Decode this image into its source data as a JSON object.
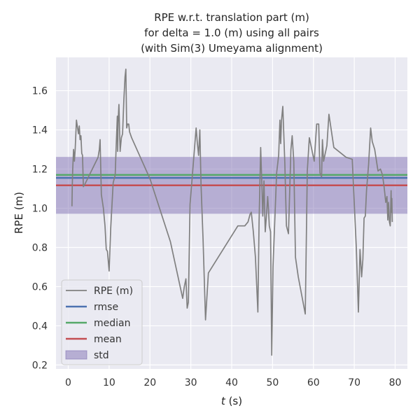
{
  "chart_data": {
    "type": "line",
    "title_lines": [
      "RPE w.r.t. translation part (m)",
      "for delta = 1.0 (m) using all pairs",
      "(with Sim(3) Umeyama alignment)"
    ],
    "xlabel_italic": "t",
    "xlabel_suffix": " (s)",
    "ylabel": "RPE (m)",
    "xlim": [
      -3,
      83
    ],
    "ylim": [
      0.18,
      1.77
    ],
    "xticks": [
      0,
      10,
      20,
      30,
      40,
      50,
      60,
      70,
      80
    ],
    "yticks": [
      0.2,
      0.4,
      0.6,
      0.8,
      1.0,
      1.2,
      1.4,
      1.6
    ],
    "ytick_labels": [
      "0.2",
      "0.4",
      "0.6",
      "0.8",
      "1.0",
      "1.2",
      "1.4",
      "1.6"
    ],
    "grid": true,
    "legend_position": "lower-left",
    "series": [
      {
        "name": "RPE (m)",
        "color": "#808080",
        "x": [
          0.9,
          1.0,
          1.1,
          1.3,
          1.5,
          1.7,
          2.0,
          2.2,
          2.5,
          2.7,
          2.9,
          3.1,
          3.3,
          3.5,
          3.7,
          4.0,
          7.3,
          7.6,
          7.8,
          8.1,
          8.6,
          9.0,
          9.3,
          9.6,
          10.0,
          10.4,
          11.0,
          11.5,
          11.7,
          12.0,
          12.1,
          12.2,
          12.4,
          12.7,
          13.0,
          13.3,
          13.6,
          13.9,
          14.1,
          14.3,
          14.5,
          14.8,
          15.0,
          15.5,
          20.0,
          25.0,
          28.0,
          28.4,
          28.8,
          29.1,
          29.4,
          29.8,
          31.3,
          31.6,
          31.9,
          32.2,
          32.5,
          33.0,
          33.6,
          34.3,
          41.5,
          41.8,
          43.2,
          44.0,
          44.5,
          44.8,
          45.3,
          45.8,
          46.4,
          46.7,
          47.1,
          47.4,
          47.6,
          47.9,
          48.2,
          48.5,
          48.8,
          49.0,
          49.2,
          49.5,
          49.8,
          50.1,
          51.0,
          51.5,
          51.8,
          52.0,
          52.2,
          52.5,
          53.0,
          53.4,
          53.9,
          54.5,
          54.8,
          55.2,
          55.6,
          56.3,
          58.0,
          58.5,
          59.0,
          59.6,
          60.2,
          60.8,
          61.3,
          61.6,
          62.0,
          62.2,
          62.5,
          63.3,
          63.8,
          65.0,
          68.0,
          69.5,
          70.5,
          71.0,
          71.4,
          71.8,
          72.1,
          72.4,
          72.7,
          73.0,
          73.5,
          74.0,
          74.4,
          75.0,
          75.8,
          76.4,
          76.9,
          77.3,
          77.7,
          78.0,
          78.2,
          78.4,
          78.6,
          78.8,
          79.0,
          79.1,
          79.2,
          79.3
        ],
        "y": [
          1.01,
          1.12,
          1.2,
          1.3,
          1.24,
          1.3,
          1.45,
          1.42,
          1.38,
          1.42,
          1.35,
          1.37,
          1.28,
          1.27,
          1.11,
          1.12,
          1.26,
          1.3,
          1.35,
          1.07,
          1.0,
          0.91,
          0.79,
          0.78,
          0.68,
          0.9,
          1.13,
          1.17,
          1.3,
          1.47,
          1.29,
          1.44,
          1.53,
          1.29,
          1.36,
          1.38,
          1.55,
          1.67,
          1.71,
          1.41,
          1.43,
          1.43,
          1.39,
          1.36,
          1.15,
          0.83,
          0.54,
          0.6,
          0.64,
          0.49,
          0.52,
          1.02,
          1.41,
          1.33,
          1.27,
          1.4,
          1.12,
          0.84,
          0.43,
          0.67,
          0.91,
          0.91,
          0.91,
          0.93,
          0.97,
          0.98,
          0.88,
          0.75,
          0.47,
          0.93,
          1.31,
          1.11,
          0.96,
          1.14,
          0.88,
          0.96,
          1.06,
          1.0,
          0.91,
          0.88,
          0.25,
          0.7,
          1.18,
          1.27,
          1.45,
          1.33,
          1.45,
          1.52,
          1.23,
          0.91,
          0.87,
          1.3,
          1.37,
          1.24,
          0.75,
          0.65,
          0.46,
          1.19,
          1.36,
          1.3,
          1.24,
          1.43,
          1.43,
          1.18,
          1.16,
          1.35,
          1.24,
          1.32,
          1.48,
          1.31,
          1.26,
          1.25,
          0.8,
          0.47,
          0.79,
          0.65,
          0.74,
          0.95,
          0.96,
          1.09,
          1.22,
          1.41,
          1.34,
          1.3,
          1.19,
          1.2,
          1.17,
          1.11,
          1.03,
          1.06,
          0.94,
          1.03,
          0.93,
          0.91,
          1.09,
          0.98,
          1.05,
          0.93
        ]
      },
      {
        "name": "rmse",
        "color": "#4c72b0",
        "value": 1.155
      },
      {
        "name": "median",
        "color": "#55a868",
        "value": 1.17
      },
      {
        "name": "mean",
        "color": "#c44e52",
        "value": 1.117
      },
      {
        "name": "std",
        "color": "#8172b3",
        "range": [
          0.972,
          1.262
        ]
      }
    ]
  }
}
